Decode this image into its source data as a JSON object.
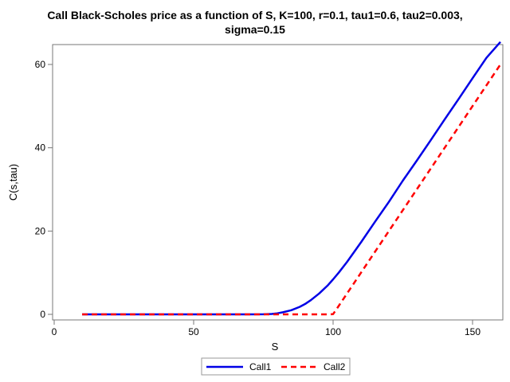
{
  "chart_data": {
    "type": "line",
    "title_line1": "Call Black-Scholes price as a function of S, K=100, r=0.1, tau1=0.6, tau2=0.003,",
    "title_line2": "sigma=0.15",
    "xlabel": "S",
    "ylabel": "C(s,tau)",
    "xlim": [
      0,
      160
    ],
    "ylim": [
      0,
      65
    ],
    "x_ticks": [
      0,
      50,
      100,
      150
    ],
    "y_ticks": [
      0,
      20,
      40,
      60
    ],
    "x_tick_labels": [
      "0",
      "50",
      "100",
      "150"
    ],
    "y_tick_labels": [
      "0",
      "20",
      "40",
      "60"
    ],
    "grid": false,
    "legend_position": "bottom",
    "series": [
      {
        "name": "Call1",
        "color": "#0000e6",
        "style": "solid",
        "x": [
          10,
          20,
          30,
          40,
          50,
          60,
          70,
          75,
          78,
          80,
          82,
          85,
          88,
          90,
          92,
          95,
          98,
          100,
          102,
          105,
          108,
          110,
          115,
          120,
          125,
          130,
          135,
          140,
          145,
          150,
          155,
          160
        ],
        "y": [
          0,
          0,
          0,
          0,
          0,
          0,
          0,
          0.02,
          0.1,
          0.25,
          0.5,
          1.0,
          1.8,
          2.5,
          3.4,
          5.0,
          6.9,
          8.4,
          10.0,
          12.6,
          15.4,
          17.3,
          22.2,
          27.0,
          32.1,
          36.9,
          41.8,
          46.8,
          51.7,
          56.7,
          61.6,
          65.4
        ]
      },
      {
        "name": "Call2",
        "color": "#ff0000",
        "style": "dashed",
        "x": [
          10,
          20,
          30,
          40,
          50,
          60,
          70,
          80,
          90,
          98,
          100,
          102,
          105,
          110,
          120,
          130,
          140,
          150,
          160
        ],
        "y": [
          0,
          0,
          0,
          0,
          0,
          0,
          0,
          0,
          0,
          0,
          0.05,
          2.0,
          5.0,
          10.0,
          20.0,
          30.0,
          40.0,
          50.0,
          60.0
        ]
      }
    ]
  }
}
